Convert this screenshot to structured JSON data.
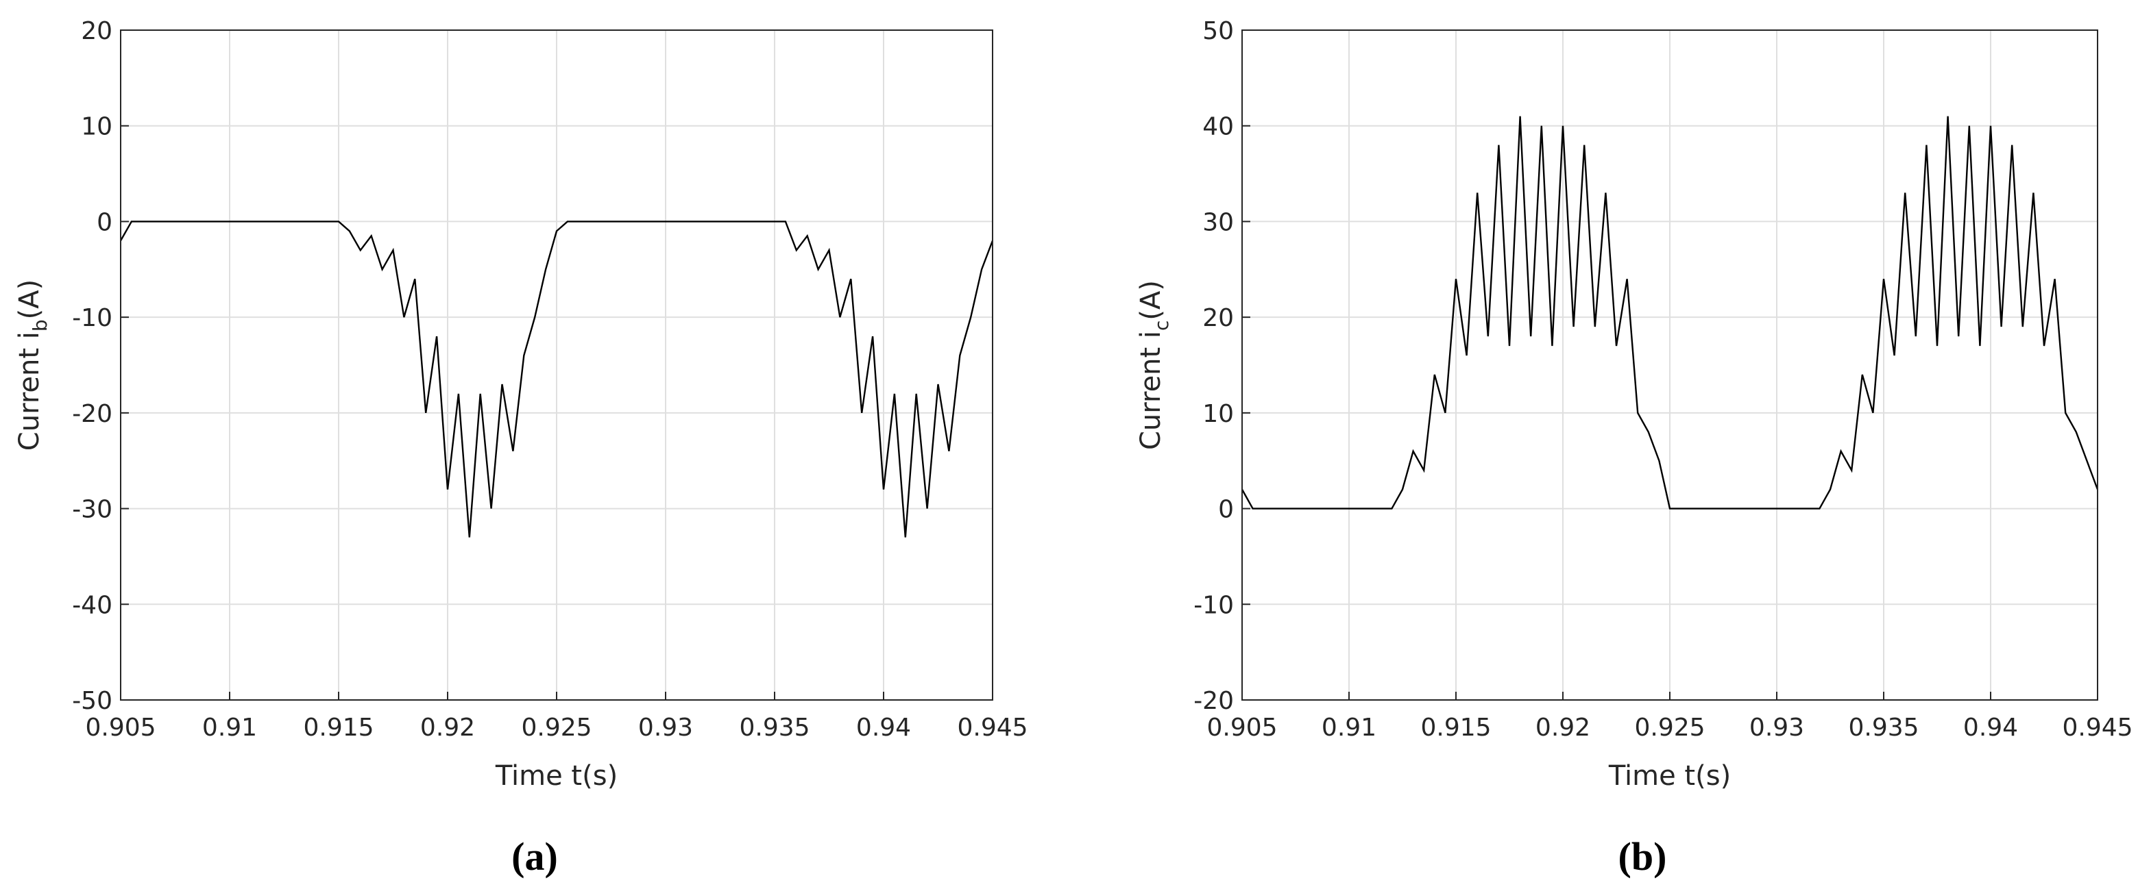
{
  "chart_data": [
    {
      "type": "line",
      "caption": "(a)",
      "xlabel": "Time t(s)",
      "ylabel": {
        "main": "Current i",
        "sub": "b",
        "suffix": "(A)"
      },
      "xlim": [
        0.905,
        0.945
      ],
      "xticks": [
        0.905,
        0.91,
        0.915,
        0.92,
        0.925,
        0.93,
        0.935,
        0.94,
        0.945
      ],
      "ylim": [
        -50,
        20
      ],
      "yticks": [
        -50,
        -40,
        -30,
        -20,
        -10,
        0,
        10,
        20
      ],
      "grid": true,
      "series": [
        {
          "color": "#000000",
          "x": [
            0.905,
            0.9055,
            0.915,
            0.9155,
            0.916,
            0.9165,
            0.917,
            0.9175,
            0.918,
            0.9185,
            0.919,
            0.9195,
            0.92,
            0.9205,
            0.921,
            0.9215,
            0.922,
            0.9225,
            0.923,
            0.9235,
            0.924,
            0.9245,
            0.925,
            0.9255,
            0.9355,
            0.936,
            0.9365,
            0.937,
            0.9375,
            0.938,
            0.9385,
            0.939,
            0.9395,
            0.94,
            0.9405,
            0.941,
            0.9415,
            0.942,
            0.9425,
            0.943,
            0.9435,
            0.944,
            0.9445,
            0.945
          ],
          "values": [
            -2,
            0,
            0,
            -1,
            -3,
            -1.5,
            -5,
            -3,
            -10,
            -6,
            -20,
            -12,
            -28,
            -18,
            -33,
            -18,
            -30,
            -17,
            -24,
            -14,
            -10,
            -5,
            -1,
            0,
            0,
            -3,
            -1.5,
            -5,
            -3,
            -10,
            -6,
            -20,
            -12,
            -28,
            -18,
            -33,
            -18,
            -30,
            -17,
            -24,
            -14,
            -10,
            -5,
            -2
          ]
        }
      ]
    },
    {
      "type": "line",
      "caption": "(b)",
      "xlabel": "Time t(s)",
      "ylabel": {
        "main": "Current i",
        "sub": "c",
        "suffix": "(A)"
      },
      "xlim": [
        0.905,
        0.945
      ],
      "xticks": [
        0.905,
        0.91,
        0.915,
        0.92,
        0.925,
        0.93,
        0.935,
        0.94,
        0.945
      ],
      "ylim": [
        -20,
        50
      ],
      "yticks": [
        -20,
        -10,
        0,
        10,
        20,
        30,
        40,
        50
      ],
      "grid": true,
      "series": [
        {
          "color": "#000000",
          "x": [
            0.905,
            0.9055,
            0.912,
            0.9125,
            0.913,
            0.9135,
            0.914,
            0.9145,
            0.915,
            0.9155,
            0.916,
            0.9165,
            0.917,
            0.9175,
            0.918,
            0.9185,
            0.919,
            0.9195,
            0.92,
            0.9205,
            0.921,
            0.9215,
            0.922,
            0.9225,
            0.923,
            0.9235,
            0.924,
            0.9245,
            0.925,
            0.932,
            0.9325,
            0.933,
            0.9335,
            0.934,
            0.9345,
            0.935,
            0.9355,
            0.936,
            0.9365,
            0.937,
            0.9375,
            0.938,
            0.9385,
            0.939,
            0.9395,
            0.94,
            0.9405,
            0.941,
            0.9415,
            0.942,
            0.9425,
            0.943,
            0.9435,
            0.944,
            0.9445,
            0.945
          ],
          "values": [
            2,
            0,
            0,
            2,
            6,
            4,
            14,
            10,
            24,
            16,
            33,
            18,
            38,
            17,
            41,
            18,
            40,
            17,
            40,
            19,
            38,
            19,
            33,
            17,
            24,
            10,
            8,
            5,
            0,
            0,
            2,
            6,
            4,
            14,
            10,
            24,
            16,
            33,
            18,
            38,
            17,
            41,
            18,
            40,
            17,
            40,
            19,
            38,
            19,
            33,
            17,
            24,
            10,
            8,
            5,
            2
          ]
        }
      ]
    }
  ]
}
